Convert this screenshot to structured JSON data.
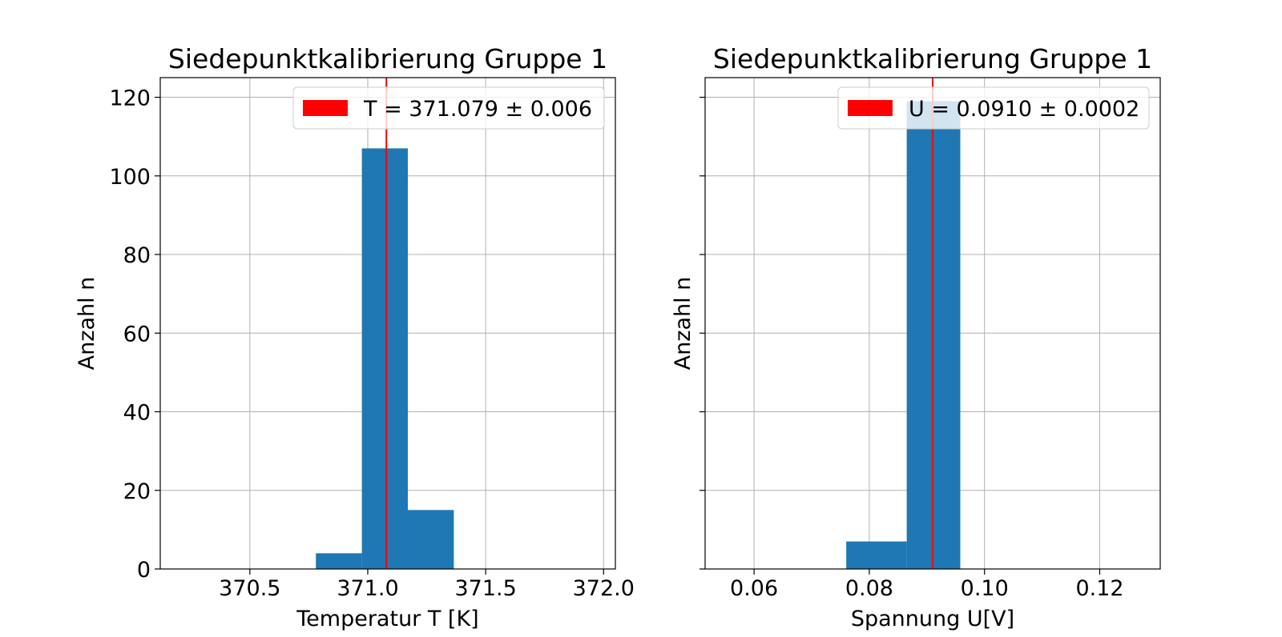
{
  "chart_data": [
    {
      "type": "bar",
      "title": "Siedepunktkalibrierung Gruppe 1",
      "xlabel": "Temperatur T [K]",
      "ylabel": "Anzahl n",
      "xlim": [
        370.12,
        372.05
      ],
      "ylim": [
        0,
        125
      ],
      "xticks": [
        370.5,
        371.0,
        371.5,
        372.0
      ],
      "xtick_labels": [
        "370.5",
        "371.0",
        "371.5",
        "372.0"
      ],
      "yticks": [
        0,
        20,
        40,
        60,
        80,
        100,
        120
      ],
      "ytick_labels": [
        "0",
        "20",
        "40",
        "60",
        "80",
        "100",
        "120"
      ],
      "bins": [
        {
          "x0": 370.78,
          "x1": 370.975,
          "count": 4
        },
        {
          "x0": 370.975,
          "x1": 371.17,
          "count": 107
        },
        {
          "x0": 371.17,
          "x1": 371.365,
          "count": 15
        }
      ],
      "mean_line": 371.079,
      "legend": "T = 371.079 ± 0.006",
      "legend_position": "upper right",
      "grid": true,
      "bar_color": "#1f77b4",
      "line_color": "#ff0000"
    },
    {
      "type": "bar",
      "title": "Siedepunktkalibrierung Gruppe 1",
      "xlabel": "Spannung U[V]",
      "ylabel": "Anzahl n",
      "xlim": [
        0.0515,
        0.1305
      ],
      "ylim": [
        0,
        125
      ],
      "xticks": [
        0.06,
        0.08,
        0.1,
        0.12
      ],
      "xtick_labels": [
        "0.06",
        "0.08",
        "0.10",
        "0.12"
      ],
      "yticks": [
        0,
        20,
        40,
        60,
        80,
        100,
        120
      ],
      "ytick_labels": [],
      "bins": [
        {
          "x0": 0.076,
          "x1": 0.0865,
          "count": 7
        },
        {
          "x0": 0.0865,
          "x1": 0.0958,
          "count": 119
        }
      ],
      "mean_line": 0.091,
      "legend": "U = 0.0910 ± 0.0002",
      "legend_position": "upper right",
      "grid": true,
      "bar_color": "#1f77b4",
      "line_color": "#ff0000"
    }
  ]
}
